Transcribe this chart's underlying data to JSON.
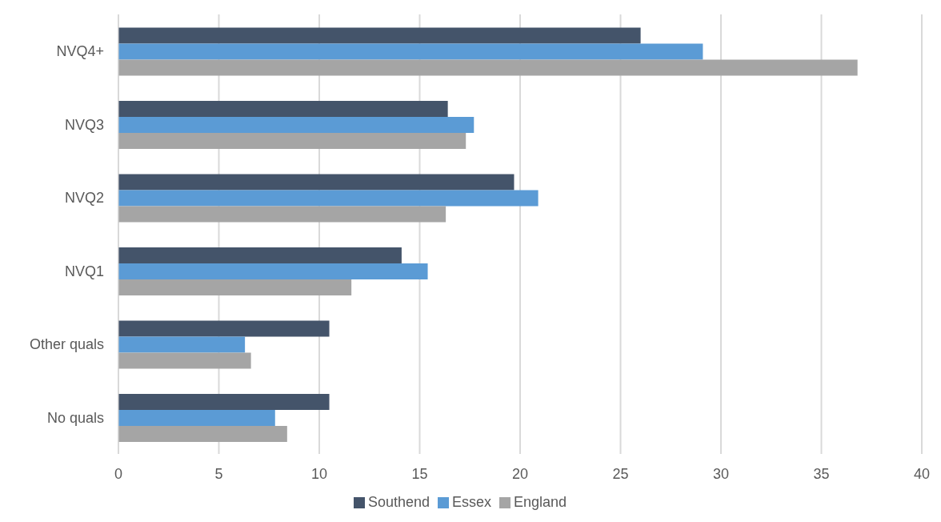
{
  "chart_data": {
    "type": "bar",
    "orientation": "horizontal",
    "categories": [
      "NVQ4+",
      "NVQ3",
      "NVQ2",
      "NVQ1",
      "Other quals",
      "No quals"
    ],
    "series": [
      {
        "name": "Southend",
        "color": "#44546a",
        "values": [
          26.0,
          16.4,
          19.7,
          14.1,
          10.5,
          10.5
        ]
      },
      {
        "name": "Essex",
        "color": "#5b9bd5",
        "values": [
          29.1,
          17.7,
          20.9,
          15.4,
          6.3,
          7.8
        ]
      },
      {
        "name": "England",
        "color": "#a5a5a5",
        "values": [
          36.8,
          17.3,
          16.3,
          11.6,
          6.6,
          8.4
        ]
      }
    ],
    "xlim": [
      0,
      40
    ],
    "xticks": [
      0,
      5,
      10,
      15,
      20,
      25,
      30,
      35,
      40
    ],
    "grid": "x",
    "legend": "bottom"
  }
}
